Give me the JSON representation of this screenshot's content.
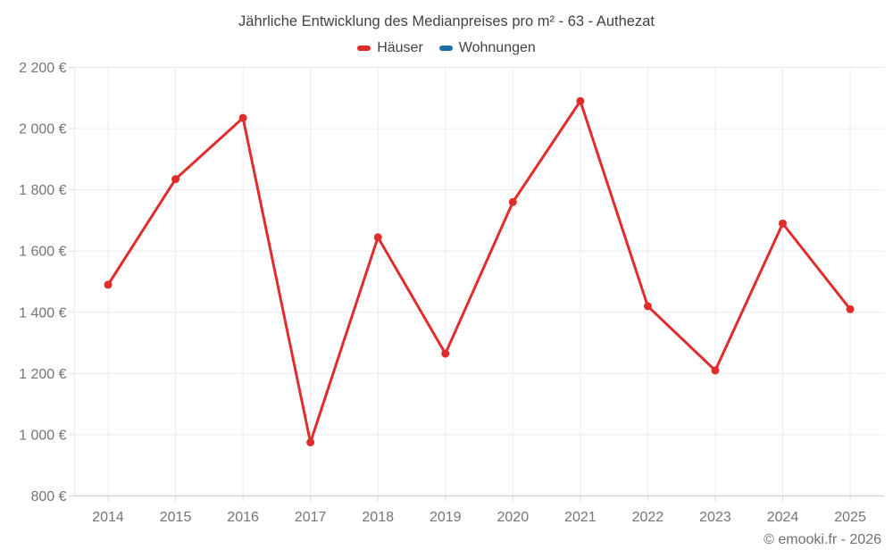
{
  "title": "Jährliche Entwicklung des Medianpreises pro m² - 63 - Authezat",
  "legend": {
    "items": [
      {
        "label": "Häuser",
        "color": "#e02c2c"
      },
      {
        "label": "Wohnungen",
        "color": "#1a6da6"
      }
    ]
  },
  "copyright": "© emooki.fr - 2026",
  "colors": {
    "haeuser": "#e02c2c",
    "wohnungen": "#1a6da6",
    "gridline": "#ebebeb",
    "axis_line": "#cfd2d4",
    "tick_mark": "#d9dbdd",
    "axis_text": "#71767a",
    "title_text": "#3d4349"
  },
  "chart_data": {
    "type": "line",
    "title": "Jährliche Entwicklung des Medianpreises pro m² - 63 - Authezat",
    "x_labels": [
      "2014",
      "2015",
      "2016",
      "2017",
      "2018",
      "2019",
      "2020",
      "2021",
      "2022",
      "2023",
      "2024",
      "2025"
    ],
    "series": [
      {
        "name": "Häuser",
        "color": "#e02c2c",
        "values": [
          1490,
          1835,
          2035,
          975,
          1645,
          1265,
          1760,
          2090,
          1420,
          1210,
          1690,
          1410
        ]
      },
      {
        "name": "Wohnungen",
        "color": "#1a6da6",
        "values": []
      }
    ],
    "xlabel": "",
    "ylabel": "",
    "ylim": [
      800,
      2200
    ],
    "ytick_step": 200,
    "y_tick_labels": [
      "800 €",
      "1 000 €",
      "1 200 €",
      "1 400 €",
      "1 600 €",
      "1 800 €",
      "2 000 €",
      "2 200 €"
    ],
    "grid": true,
    "legend_position": "top"
  }
}
